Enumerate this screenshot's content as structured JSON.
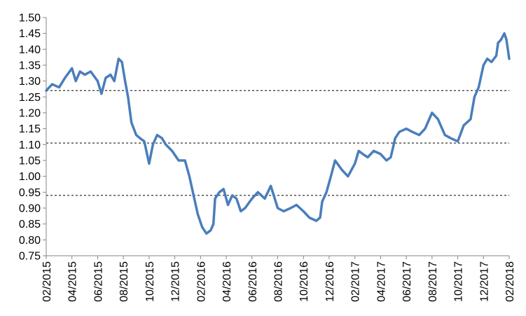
{
  "chart_data": {
    "type": "line",
    "title": "",
    "xlabel": "",
    "ylabel": "",
    "ylim": [
      0.75,
      1.5
    ],
    "y_ticks": [
      "0.75",
      "0.80",
      "0.85",
      "0.90",
      "0.95",
      "1.00",
      "1.05",
      "1.10",
      "1.15",
      "1.20",
      "1.25",
      "1.30",
      "1.35",
      "1.40",
      "1.45",
      "1.50"
    ],
    "x_ticks": [
      "02/2015",
      "04/2015",
      "06/2015",
      "08/2015",
      "10/2015",
      "12/2015",
      "02/2016",
      "04/2016",
      "06/2016",
      "08/2016",
      "10/2016",
      "12/2016",
      "02/2017",
      "04/2017",
      "06/2017",
      "08/2017",
      "10/2017",
      "12/2017",
      "02/2018"
    ],
    "xlim": [
      "2015-02",
      "2018-02"
    ],
    "reference_lines": [
      1.27,
      1.105,
      0.94
    ],
    "grid": false,
    "legend": "none",
    "series": [
      {
        "color": "#4a7ebb",
        "points": [
          [
            "2015-02-01",
            1.27
          ],
          [
            "2015-02-15",
            1.29
          ],
          [
            "2015-03-01",
            1.28
          ],
          [
            "2015-03-15",
            1.31
          ],
          [
            "2015-04-01",
            1.34
          ],
          [
            "2015-04-10",
            1.3
          ],
          [
            "2015-04-20",
            1.33
          ],
          [
            "2015-05-01",
            1.32
          ],
          [
            "2015-05-15",
            1.33
          ],
          [
            "2015-06-01",
            1.3
          ],
          [
            "2015-06-10",
            1.26
          ],
          [
            "2015-06-20",
            1.31
          ],
          [
            "2015-07-01",
            1.32
          ],
          [
            "2015-07-10",
            1.3
          ],
          [
            "2015-07-20",
            1.37
          ],
          [
            "2015-07-28",
            1.36
          ],
          [
            "2015-08-05",
            1.3
          ],
          [
            "2015-08-12",
            1.25
          ],
          [
            "2015-08-20",
            1.17
          ],
          [
            "2015-09-01",
            1.13
          ],
          [
            "2015-09-10",
            1.12
          ],
          [
            "2015-09-20",
            1.11
          ],
          [
            "2015-10-01",
            1.04
          ],
          [
            "2015-10-10",
            1.1
          ],
          [
            "2015-10-20",
            1.13
          ],
          [
            "2015-11-01",
            1.12
          ],
          [
            "2015-11-10",
            1.1
          ],
          [
            "2015-11-25",
            1.08
          ],
          [
            "2015-12-10",
            1.05
          ],
          [
            "2015-12-25",
            1.05
          ],
          [
            "2016-01-05",
            1.0
          ],
          [
            "2016-01-15",
            0.94
          ],
          [
            "2016-01-25",
            0.88
          ],
          [
            "2016-02-05",
            0.84
          ],
          [
            "2016-02-15",
            0.82
          ],
          [
            "2016-02-25",
            0.83
          ],
          [
            "2016-03-01",
            0.85
          ],
          [
            "2016-03-05",
            0.93
          ],
          [
            "2016-03-15",
            0.95
          ],
          [
            "2016-03-25",
            0.96
          ],
          [
            "2016-04-05",
            0.91
          ],
          [
            "2016-04-15",
            0.94
          ],
          [
            "2016-04-25",
            0.93
          ],
          [
            "2016-05-05",
            0.89
          ],
          [
            "2016-05-15",
            0.9
          ],
          [
            "2016-06-01",
            0.93
          ],
          [
            "2016-06-15",
            0.95
          ],
          [
            "2016-07-01",
            0.93
          ],
          [
            "2016-07-15",
            0.97
          ],
          [
            "2016-08-01",
            0.9
          ],
          [
            "2016-08-15",
            0.89
          ],
          [
            "2016-09-01",
            0.9
          ],
          [
            "2016-09-15",
            0.91
          ],
          [
            "2016-10-01",
            0.89
          ],
          [
            "2016-10-15",
            0.87
          ],
          [
            "2016-11-01",
            0.86
          ],
          [
            "2016-11-10",
            0.87
          ],
          [
            "2016-11-15",
            0.92
          ],
          [
            "2016-11-25",
            0.95
          ],
          [
            "2016-12-05",
            1.0
          ],
          [
            "2016-12-15",
            1.05
          ],
          [
            "2017-01-01",
            1.02
          ],
          [
            "2017-01-15",
            1.0
          ],
          [
            "2017-02-01",
            1.04
          ],
          [
            "2017-02-10",
            1.08
          ],
          [
            "2017-02-20",
            1.07
          ],
          [
            "2017-03-01",
            1.06
          ],
          [
            "2017-03-15",
            1.08
          ],
          [
            "2017-04-01",
            1.07
          ],
          [
            "2017-04-15",
            1.05
          ],
          [
            "2017-04-25",
            1.06
          ],
          [
            "2017-05-05",
            1.12
          ],
          [
            "2017-05-15",
            1.14
          ],
          [
            "2017-06-01",
            1.15
          ],
          [
            "2017-06-15",
            1.14
          ],
          [
            "2017-07-01",
            1.13
          ],
          [
            "2017-07-15",
            1.15
          ],
          [
            "2017-08-01",
            1.2
          ],
          [
            "2017-08-15",
            1.18
          ],
          [
            "2017-09-01",
            1.13
          ],
          [
            "2017-09-15",
            1.12
          ],
          [
            "2017-10-01",
            1.11
          ],
          [
            "2017-10-15",
            1.16
          ],
          [
            "2017-11-01",
            1.18
          ],
          [
            "2017-11-10",
            1.25
          ],
          [
            "2017-11-20",
            1.28
          ],
          [
            "2017-12-01",
            1.35
          ],
          [
            "2017-12-10",
            1.37
          ],
          [
            "2017-12-20",
            1.36
          ],
          [
            "2018-01-01",
            1.38
          ],
          [
            "2018-01-05",
            1.42
          ],
          [
            "2018-01-12",
            1.43
          ],
          [
            "2018-01-20",
            1.45
          ],
          [
            "2018-01-25",
            1.43
          ],
          [
            "2018-02-01",
            1.37
          ]
        ]
      }
    ]
  }
}
